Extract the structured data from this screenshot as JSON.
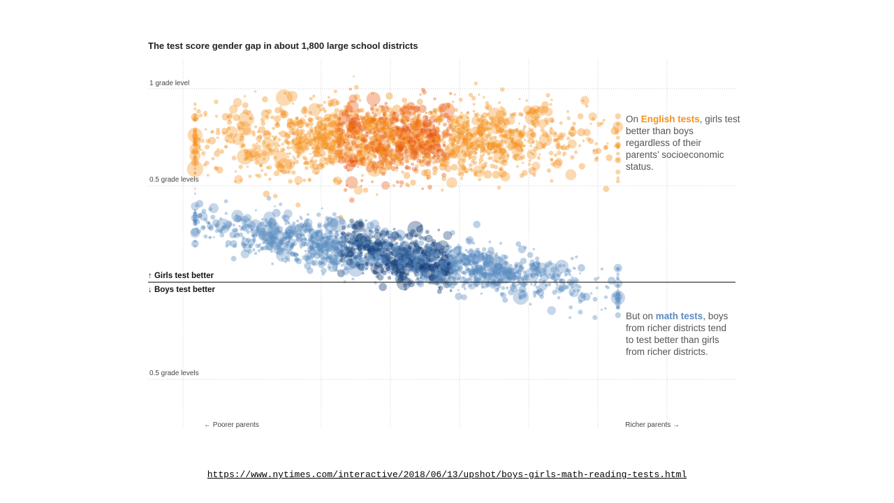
{
  "colors": {
    "english": "#f5921e",
    "english_dark": "#e8550a",
    "math": "#5b8bc0",
    "math_dark": "#0f3a73",
    "grid": "#cccccc",
    "zero_line": "#333333",
    "annot_text": "#555555"
  },
  "source": {
    "url": "https://www.nytimes.com/interactive/2018/06/13/upshot/boys-girls-math-reading-tests.html"
  },
  "chart_data": {
    "type": "scatter",
    "title": "The test score gender gap in about 1,800 large school districts",
    "y_tick_labels": [
      "1 grade level",
      "0.5 grade levels",
      "0.5 grade levels"
    ],
    "y_ticks": [
      1,
      0.5,
      -0.5
    ],
    "ylim": [
      -0.55,
      1.05
    ],
    "x_axis_labels": {
      "left": "← Poorer parents",
      "right": "Richer parents →"
    },
    "xlim": [
      0,
      1
    ],
    "grid": true,
    "zero_line_labels": {
      "above": "↑ Girls test better",
      "below": "↓ Boys test better"
    },
    "annotations": {
      "english": {
        "before": "On ",
        "emphasis": "English tests",
        "after": ", girls test",
        "lines": [
          "better than boys",
          "regardless of their",
          "parents’ socioeconomic",
          "status."
        ]
      },
      "math": {
        "before": "But on ",
        "emphasis": "math tests",
        "after": ", boys",
        "lines": [
          "from richer districts tend",
          "to test better than girls",
          "from richer districts."
        ]
      }
    },
    "series": [
      {
        "key": "english",
        "count": 1800,
        "trend_slope": 0,
        "trend_intercept": 0.74,
        "spread": 0.1,
        "x_center": 0.42,
        "x_spread": 0.16
      },
      {
        "key": "math",
        "count": 1800,
        "trend_slope": -0.5,
        "trend_intercept": 0.15,
        "spread": 0.06,
        "x_center": 0.42,
        "x_spread": 0.16
      }
    ]
  }
}
